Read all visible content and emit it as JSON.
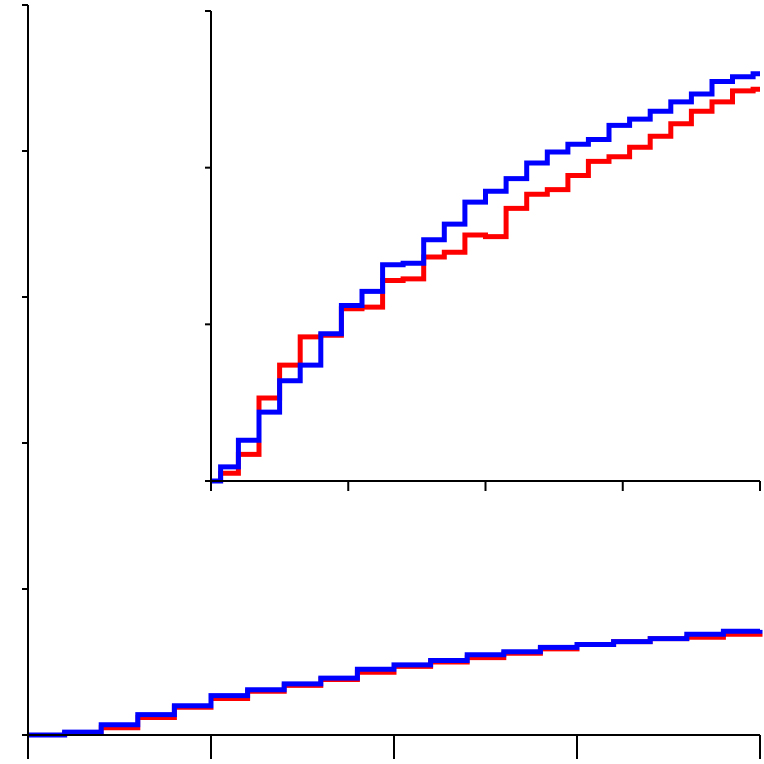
{
  "chart_data": [
    {
      "type": "line",
      "step": true,
      "role": "main",
      "title": "",
      "xlabel": "",
      "ylabel": "",
      "xlim": [
        0,
        4
      ],
      "ylim": [
        0,
        5
      ],
      "x_ticks": [
        0,
        1,
        2,
        3,
        4
      ],
      "y_ticks": [
        0,
        1,
        2,
        3,
        4,
        5
      ],
      "tick_labels_shown": false,
      "grid": false,
      "legend": "none",
      "series": [
        {
          "color": "#ff0000",
          "x": [
            0,
            0.2,
            0.4,
            0.6,
            0.8,
            1.0,
            1.2,
            1.4,
            1.6,
            1.8,
            2.0,
            2.2,
            2.4,
            2.6,
            2.8,
            3.0,
            3.2,
            3.4,
            3.6,
            3.8,
            4.0
          ],
          "y": [
            0,
            0.01,
            0.05,
            0.12,
            0.19,
            0.25,
            0.3,
            0.34,
            0.38,
            0.43,
            0.47,
            0.5,
            0.53,
            0.56,
            0.59,
            0.62,
            0.64,
            0.66,
            0.67,
            0.69,
            0.7
          ]
        },
        {
          "color": "#0000ff",
          "x": [
            0,
            0.2,
            0.4,
            0.6,
            0.8,
            1.0,
            1.2,
            1.4,
            1.6,
            1.8,
            2.0,
            2.2,
            2.4,
            2.6,
            2.8,
            3.0,
            3.2,
            3.4,
            3.6,
            3.8,
            4.0
          ],
          "y": [
            0,
            0.02,
            0.07,
            0.14,
            0.2,
            0.27,
            0.31,
            0.35,
            0.39,
            0.45,
            0.48,
            0.51,
            0.55,
            0.57,
            0.6,
            0.62,
            0.64,
            0.66,
            0.69,
            0.71,
            0.72
          ]
        }
      ]
    },
    {
      "type": "line",
      "step": true,
      "role": "inset",
      "title": "",
      "xlabel": "",
      "ylabel": "",
      "xlim": [
        0,
        4
      ],
      "ylim": [
        0,
        3
      ],
      "x_ticks": [
        0,
        1,
        2,
        3,
        4
      ],
      "y_ticks": [
        0,
        1,
        2,
        3
      ],
      "tick_labels_shown": false,
      "grid": false,
      "legend": "none",
      "series": [
        {
          "color": "#ff0000",
          "x": [
            0,
            0.07,
            0.2,
            0.35,
            0.5,
            0.65,
            0.8,
            0.95,
            1.1,
            1.25,
            1.4,
            1.55,
            1.7,
            1.85,
            2.0,
            2.15,
            2.3,
            2.45,
            2.6,
            2.75,
            2.9,
            3.05,
            3.2,
            3.35,
            3.5,
            3.65,
            3.8,
            3.95
          ],
          "y": [
            0,
            0.05,
            0.17,
            0.53,
            0.74,
            0.92,
            0.93,
            1.1,
            1.11,
            1.28,
            1.29,
            1.43,
            1.46,
            1.57,
            1.56,
            1.74,
            1.83,
            1.86,
            1.95,
            2.04,
            2.07,
            2.13,
            2.2,
            2.28,
            2.36,
            2.42,
            2.49,
            2.5
          ]
        },
        {
          "color": "#0000ff",
          "x": [
            0,
            0.07,
            0.2,
            0.35,
            0.5,
            0.65,
            0.8,
            0.95,
            1.1,
            1.25,
            1.4,
            1.55,
            1.7,
            1.85,
            2.0,
            2.15,
            2.3,
            2.45,
            2.6,
            2.75,
            2.9,
            3.05,
            3.2,
            3.35,
            3.5,
            3.65,
            3.8,
            3.95
          ],
          "y": [
            0,
            0.09,
            0.26,
            0.44,
            0.64,
            0.74,
            0.94,
            1.12,
            1.21,
            1.38,
            1.39,
            1.54,
            1.64,
            1.78,
            1.85,
            1.93,
            2.03,
            2.1,
            2.15,
            2.18,
            2.27,
            2.31,
            2.36,
            2.42,
            2.47,
            2.55,
            2.58,
            2.6
          ]
        }
      ]
    }
  ]
}
